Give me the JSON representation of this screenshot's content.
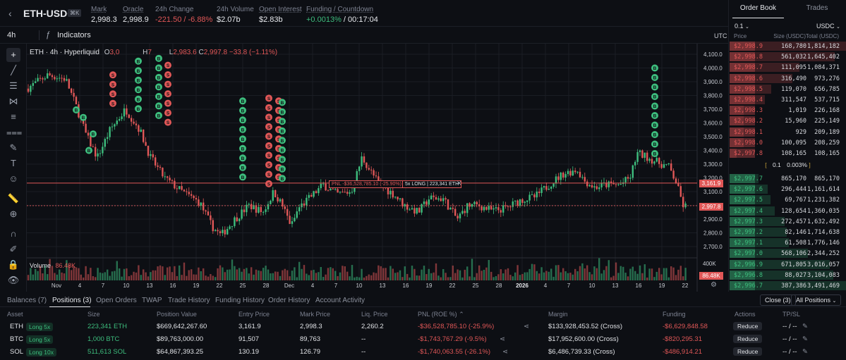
{
  "header": {
    "symbol": "ETH-USDC",
    "kbd": "⌘K",
    "stats": [
      {
        "label": "Mark",
        "value": "2,998.3"
      },
      {
        "label": "Oracle",
        "value": "2,998.9"
      },
      {
        "label": "24h Change",
        "value": "-221.50 / -6.88%"
      },
      {
        "label": "24h Volume",
        "value": "$2.07b"
      },
      {
        "label": "Open Interest",
        "value": "$2.83b"
      },
      {
        "label": "Funding / Countdown",
        "value_rate": "+0.0013%",
        "value_countdown": "/ 00:17:04"
      }
    ]
  },
  "toolbar": {
    "interval": "4h",
    "indicators": "Indicators",
    "tz": "UTC"
  },
  "chart": {
    "legend_title": "ETH · 4h · Hyperliquid",
    "ohlc": {
      "o_label": "O",
      "o": "3,0",
      "h_label": "H",
      "h": "7",
      "l_label": "L",
      "l": "2,983.6",
      "c_label": "C",
      "c": "2,997.8",
      "chg": "−33.8 (−1.11%)"
    },
    "volume_label": "Volume",
    "volume_value": "86.48K",
    "y_ticks": [
      "4,100.0",
      "4,000.0",
      "3,900.0",
      "3,800.0",
      "3,700.0",
      "3,600.0",
      "3,500.0",
      "3,400.0",
      "3,300.0",
      "3,200.0",
      "3,100.0",
      "3,000.0",
      "2,900.0",
      "2,800.0",
      "2,700.0"
    ],
    "x_ticks": [
      "Nov",
      "4",
      "7",
      "10",
      "13",
      "16",
      "19",
      "22",
      "25",
      "28",
      "Dec",
      "4",
      "7",
      "10",
      "13",
      "16",
      "19",
      "22",
      "25",
      "28",
      "2026",
      "4",
      "7",
      "10",
      "13",
      "16",
      "19",
      "22"
    ],
    "vol_axis": "400K",
    "price_tag_entry": "3,161.9",
    "price_tag_mark": "2,997.8",
    "vol_tag": "86.48K",
    "pnl_label": "PNL -$36,528,785.10 (-25.90%)",
    "pos_label": "5x LONG | 223,341 ETH",
    "fill_buy": "B",
    "fill_sell": "S",
    "colors": {
      "up": "#3dbd7d",
      "down": "#e05757",
      "grid": "#1a1d24"
    }
  },
  "orderbook": {
    "tabs": [
      "Order Book",
      "Trades"
    ],
    "tick": "0.1",
    "currency": "USDC",
    "cols": [
      "Price",
      "Size (USDC)",
      "Total (USDC)"
    ],
    "asks": [
      {
        "price": "$2,998.9",
        "size": "168,780",
        "total": "1,814,182"
      },
      {
        "price": "$2,998.8",
        "size": "561,032",
        "total": "1,645,402"
      },
      {
        "price": "$2,998.7",
        "size": "111,095",
        "total": "1,084,371"
      },
      {
        "price": "$2,998.6",
        "size": "316,490",
        "total": "973,276"
      },
      {
        "price": "$2,998.5",
        "size": "119,070",
        "total": "656,785"
      },
      {
        "price": "$2,998.4",
        "size": "311,547",
        "total": "537,715"
      },
      {
        "price": "$2,998.3",
        "size": "1,019",
        "total": "226,168"
      },
      {
        "price": "$2,998.2",
        "size": "15,960",
        "total": "225,149"
      },
      {
        "price": "$2,998.1",
        "size": "929",
        "total": "209,189"
      },
      {
        "price": "$2,998.0",
        "size": "100,095",
        "total": "208,259"
      },
      {
        "price": "$2,997.8",
        "size": "108,165",
        "total": "108,165"
      }
    ],
    "ask_depth": [
      1.0,
      0.9,
      0.6,
      0.54,
      0.36,
      0.3,
      0.12,
      0.12,
      0.12,
      0.12,
      0.06
    ],
    "spread_value": "0.1",
    "spread_pct": "0.003%",
    "bids": [
      {
        "price": "$2,997.7",
        "size": "865,170",
        "total": "865,170"
      },
      {
        "price": "$2,997.6",
        "size": "296,444",
        "total": "1,161,614"
      },
      {
        "price": "$2,997.5",
        "size": "69,767",
        "total": "1,231,382"
      },
      {
        "price": "$2,997.4",
        "size": "128,654",
        "total": "1,360,035"
      },
      {
        "price": "$2,997.3",
        "size": "272,457",
        "total": "1,632,492"
      },
      {
        "price": "$2,997.2",
        "size": "82,146",
        "total": "1,714,638"
      },
      {
        "price": "$2,997.1",
        "size": "61,508",
        "total": "1,776,146"
      },
      {
        "price": "$2,997.0",
        "size": "568,106",
        "total": "2,344,252"
      },
      {
        "price": "$2,996.9",
        "size": "671,805",
        "total": "3,016,057"
      },
      {
        "price": "$2,996.8",
        "size": "88,027",
        "total": "3,104,083"
      },
      {
        "price": "$2,996.7",
        "size": "387,386",
        "total": "3,491,469"
      }
    ],
    "bid_depth": [
      0.25,
      0.33,
      0.35,
      0.39,
      0.47,
      0.49,
      0.51,
      0.67,
      0.86,
      0.89,
      1.0
    ]
  },
  "bottom": {
    "tabs": [
      "Balances (7)",
      "Positions (3)",
      "Open Orders",
      "TWAP",
      "Trade History",
      "Funding History",
      "Order History",
      "Account Activity"
    ],
    "close_btn": "Close (3)",
    "filter_btn": "All Positions",
    "columns": [
      "Asset",
      "Size",
      "Position Value",
      "Entry Price",
      "Mark Price",
      "Liq. Price",
      "PNL (ROE %)",
      "Margin",
      "Funding",
      "Actions",
      "TP/SL"
    ],
    "positions": [
      {
        "asset": "ETH",
        "lev": "Long 5x",
        "size": "223,341 ETH",
        "value": "$669,642,267.60",
        "entry": "3,161.9",
        "mark": "2,998.3",
        "liq": "2,260.2",
        "pnl": "-$36,528,785.10 (-25.9%)",
        "margin": "$133,928,453.52 (Cross)",
        "funding": "-$6,629,848.58",
        "action": "Reduce",
        "tpsl": "-- / --"
      },
      {
        "asset": "BTC",
        "lev": "Long 5x",
        "size": "1,000 BTC",
        "value": "$89,763,000.00",
        "entry": "91,507",
        "mark": "89,763",
        "liq": "--",
        "pnl": "-$1,743,767.29 (-9.5%)",
        "margin": "$17,952,600.00 (Cross)",
        "funding": "-$820,295.31",
        "action": "Reduce",
        "tpsl": "-- / --"
      },
      {
        "asset": "SOL",
        "lev": "Long 10x",
        "size": "511,613 SOL",
        "value": "$64,867,393.25",
        "entry": "130.19",
        "mark": "126.79",
        "liq": "--",
        "pnl": "-$1,740,063.55 (-26.1%)",
        "margin": "$6,486,739.33 (Cross)",
        "funding": "-$486,914.21",
        "action": "Reduce",
        "tpsl": "-- / --"
      }
    ]
  }
}
